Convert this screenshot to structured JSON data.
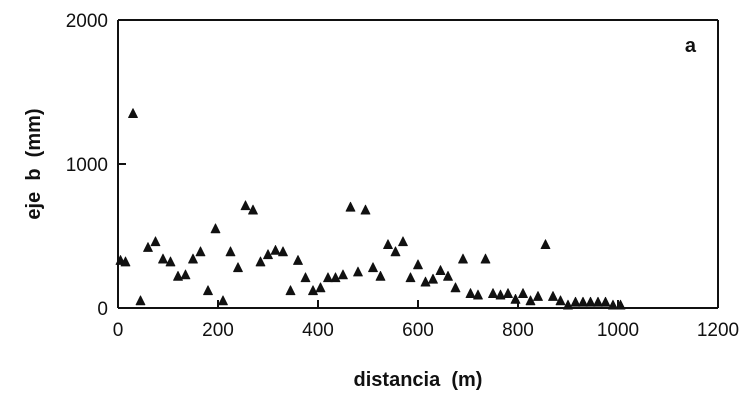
{
  "chart_data": {
    "type": "scatter",
    "title": "",
    "panel_label": "a",
    "xlabel": "distancia  (m)",
    "ylabel": "eje  b  (mm)",
    "xlim": [
      0,
      1200
    ],
    "ylim": [
      0,
      2000
    ],
    "xticks": [
      0,
      200,
      400,
      600,
      800,
      1000,
      1200
    ],
    "yticks": [
      0,
      1000,
      2000
    ],
    "grid": false,
    "marker": "triangle",
    "series": [
      {
        "points": [
          [
            5,
            330
          ],
          [
            15,
            320
          ],
          [
            30,
            1350
          ],
          [
            45,
            50
          ],
          [
            60,
            420
          ],
          [
            75,
            460
          ],
          [
            90,
            340
          ],
          [
            105,
            320
          ],
          [
            120,
            220
          ],
          [
            135,
            230
          ],
          [
            150,
            340
          ],
          [
            165,
            390
          ],
          [
            180,
            120
          ],
          [
            195,
            550
          ],
          [
            210,
            50
          ],
          [
            225,
            390
          ],
          [
            240,
            280
          ],
          [
            255,
            710
          ],
          [
            270,
            680
          ],
          [
            285,
            320
          ],
          [
            300,
            370
          ],
          [
            315,
            400
          ],
          [
            330,
            390
          ],
          [
            345,
            120
          ],
          [
            360,
            330
          ],
          [
            375,
            210
          ],
          [
            390,
            120
          ],
          [
            405,
            140
          ],
          [
            420,
            210
          ],
          [
            435,
            210
          ],
          [
            450,
            230
          ],
          [
            465,
            700
          ],
          [
            480,
            250
          ],
          [
            495,
            680
          ],
          [
            510,
            280
          ],
          [
            525,
            220
          ],
          [
            540,
            440
          ],
          [
            555,
            390
          ],
          [
            570,
            460
          ],
          [
            585,
            210
          ],
          [
            600,
            300
          ],
          [
            615,
            180
          ],
          [
            630,
            200
          ],
          [
            645,
            260
          ],
          [
            660,
            220
          ],
          [
            675,
            140
          ],
          [
            690,
            340
          ],
          [
            705,
            100
          ],
          [
            720,
            90
          ],
          [
            735,
            340
          ],
          [
            750,
            100
          ],
          [
            765,
            90
          ],
          [
            780,
            100
          ],
          [
            795,
            60
          ],
          [
            810,
            100
          ],
          [
            825,
            50
          ],
          [
            840,
            80
          ],
          [
            855,
            440
          ],
          [
            870,
            80
          ],
          [
            885,
            50
          ],
          [
            900,
            20
          ],
          [
            915,
            40
          ],
          [
            930,
            40
          ],
          [
            945,
            40
          ],
          [
            960,
            40
          ],
          [
            975,
            40
          ],
          [
            990,
            20
          ],
          [
            1005,
            20
          ]
        ]
      }
    ]
  }
}
